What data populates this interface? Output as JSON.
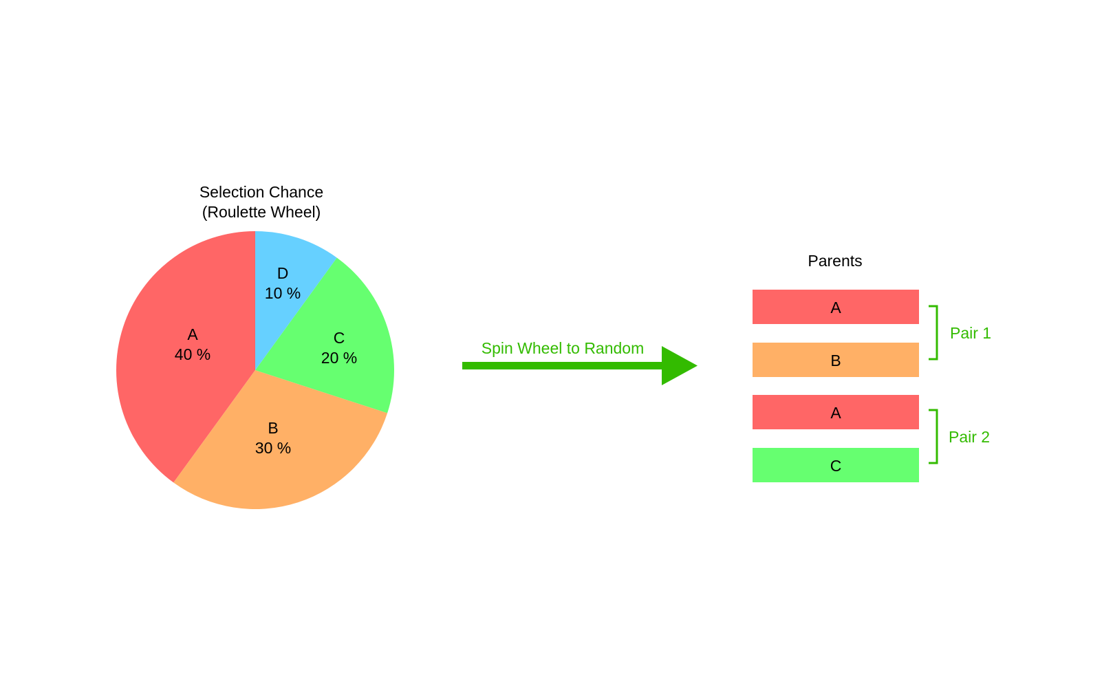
{
  "wheel": {
    "title_line1": "Selection Chance",
    "title_line2": "(Roulette Wheel)",
    "slices": [
      {
        "name": "A",
        "percent": 40,
        "percent_label": "40 %",
        "color": "#ff6666"
      },
      {
        "name": "B",
        "percent": 30,
        "percent_label": "30 %",
        "color": "#ffb066"
      },
      {
        "name": "C",
        "percent": 20,
        "percent_label": "20 %",
        "color": "#66ff70"
      },
      {
        "name": "D",
        "percent": 10,
        "percent_label": "10 %",
        "color": "#66d0ff"
      }
    ]
  },
  "arrow": {
    "label": "Spin Wheel to Random",
    "color": "#33bb00"
  },
  "parents": {
    "title": "Parents",
    "items": [
      {
        "name": "A",
        "color": "#ff6666"
      },
      {
        "name": "B",
        "color": "#ffb066"
      },
      {
        "name": "A",
        "color": "#ff6666"
      },
      {
        "name": "C",
        "color": "#66ff70"
      }
    ],
    "pairs": [
      {
        "label": "Pair 1"
      },
      {
        "label": "Pair 2"
      }
    ],
    "bracket_color": "#33bb00"
  }
}
